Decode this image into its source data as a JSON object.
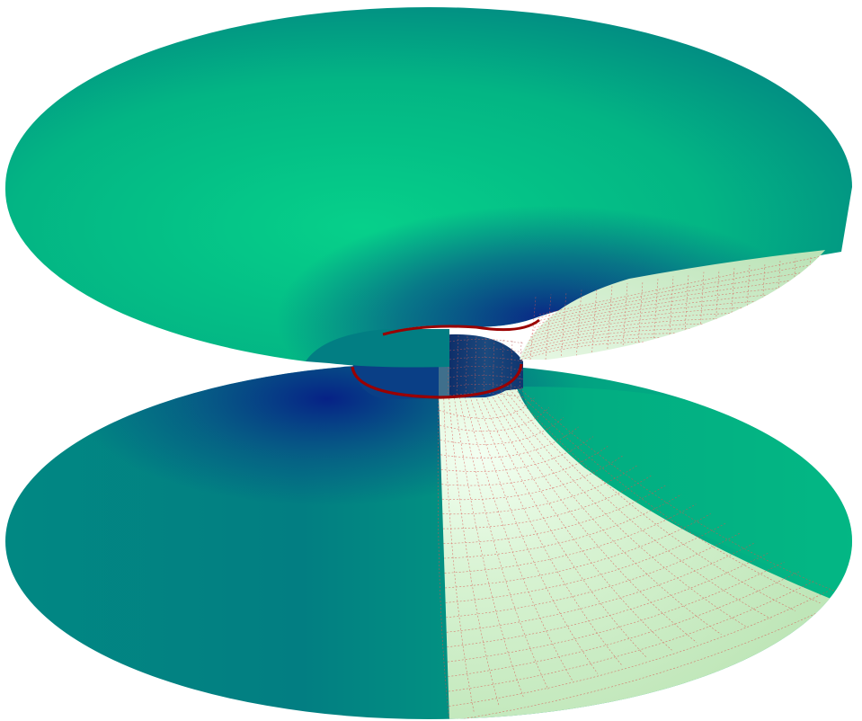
{
  "figure": {
    "subject": "",
    "colors": {
      "background": "#ffffff",
      "surface_light": "#06d08a",
      "surface_mid": "#02a684",
      "surface_dark": "#0a2e86",
      "cutaway_fill": "#c8ebc2",
      "cutaway_highlight": "#f2fff0",
      "grid_lines": "#d9534f",
      "throat_ring": "#9a0000"
    }
  }
}
